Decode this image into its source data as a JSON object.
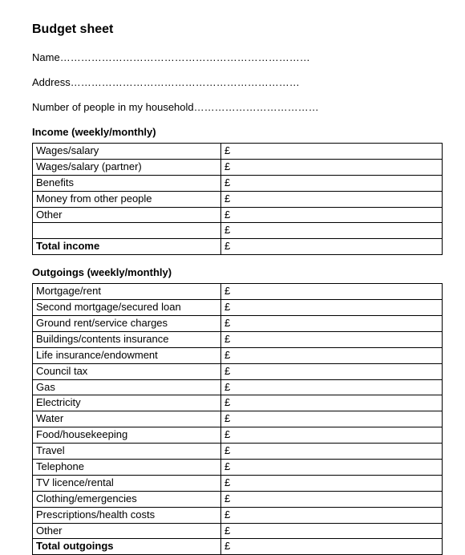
{
  "title": "Budget sheet",
  "fields": {
    "name_label": "Name",
    "name_dots": "………………………………………………………………",
    "address_label": "Address",
    "address_dots": "…………………………………………………………",
    "household_label": "Number of people in my household",
    "household_dots": "………………………………"
  },
  "income": {
    "heading": "Income (weekly/monthly)",
    "currency": "£",
    "rows": [
      "Wages/salary",
      "Wages/salary (partner)",
      "Benefits",
      "Money from other people",
      "Other",
      ""
    ],
    "total_label": "Total income"
  },
  "outgoings": {
    "heading": "Outgoings (weekly/monthly)",
    "currency": "£",
    "rows": [
      "Mortgage/rent",
      "Second mortgage/secured loan",
      "Ground rent/service charges",
      "Buildings/contents insurance",
      "Life insurance/endowment",
      "Council tax",
      "Gas",
      "Electricity",
      "Water",
      "Food/housekeeping",
      "Travel",
      "Telephone",
      "TV licence/rental",
      "Clothing/emergencies",
      "Prescriptions/health costs",
      "Other"
    ],
    "total_label": "Total outgoings"
  }
}
